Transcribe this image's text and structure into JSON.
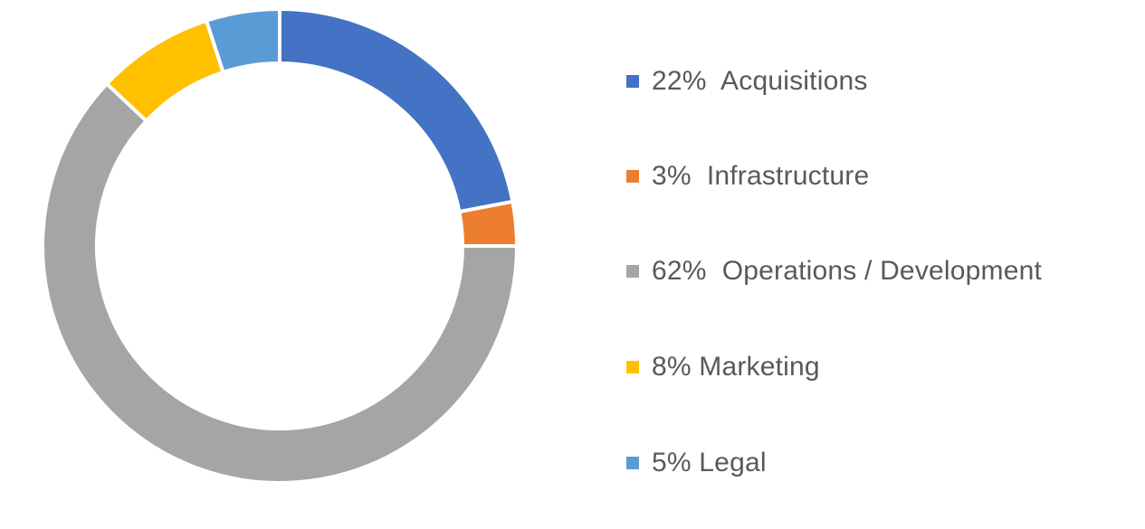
{
  "chart_data": {
    "type": "pie",
    "variant": "donut",
    "title": "",
    "legend_position": "right",
    "slices": [
      {
        "label": "22%  Acquisitions",
        "category": "Acquisitions",
        "value": 22,
        "color": "#4472C4"
      },
      {
        "label": "3%  Infrastructure",
        "category": "Infrastructure",
        "value": 3,
        "color": "#ED7D31"
      },
      {
        "label": "62%  Operations / Development",
        "category": "Operations / Development",
        "value": 62,
        "color": "#A5A5A5"
      },
      {
        "label": "8% Marketing",
        "category": "Marketing",
        "value": 8,
        "color": "#FFC000"
      },
      {
        "label": "5% Legal",
        "category": "Legal",
        "value": 5,
        "color": "#5B9BD5"
      }
    ]
  }
}
